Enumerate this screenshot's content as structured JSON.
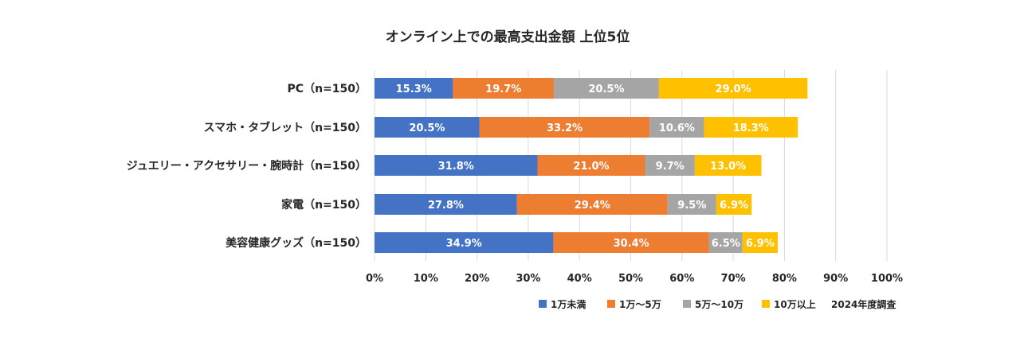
{
  "chart_data": {
    "type": "bar",
    "orientation": "horizontal",
    "stacked": true,
    "title": "オンライン上での最高支出金額 上位5位",
    "categories": [
      "PC（n=150）",
      "スマホ・タブレット（n=150）",
      "ジュエリー・アクセサリー・腕時計（n=150）",
      "家電（n=150）",
      "美容健康グッズ（n=150）"
    ],
    "series": [
      {
        "name": "1万未満",
        "color": "#4472C4",
        "values": [
          15.3,
          20.5,
          31.8,
          27.8,
          34.9
        ]
      },
      {
        "name": "1万～5万",
        "color": "#ED7D31",
        "values": [
          19.7,
          33.2,
          21.0,
          29.4,
          30.4
        ]
      },
      {
        "name": "5万～10万",
        "color": "#A5A5A5",
        "values": [
          20.5,
          10.6,
          9.7,
          9.5,
          6.5
        ]
      },
      {
        "name": "10万以上",
        "color": "#FFC000",
        "values": [
          29.0,
          18.3,
          13.0,
          6.9,
          6.9
        ]
      }
    ],
    "xlim": [
      0,
      100
    ],
    "xticks": [
      "0%",
      "10%",
      "20%",
      "30%",
      "40%",
      "50%",
      "60%",
      "70%",
      "80%",
      "90%",
      "100%"
    ],
    "grid": true,
    "legend": "bottom-right",
    "note": "2024年度調査"
  }
}
